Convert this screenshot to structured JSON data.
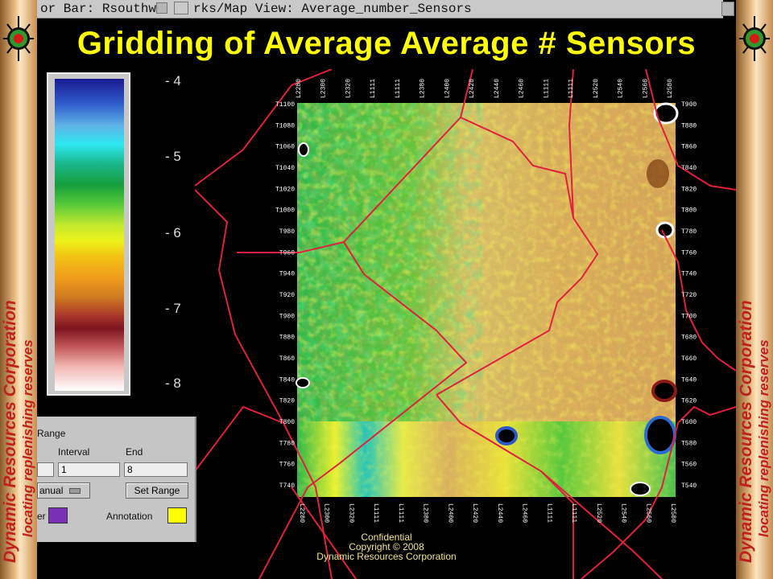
{
  "window": {
    "colorbar_title": "or Bar: Rsouthw",
    "map_title": "rks/Map View: Average_number_Sensors"
  },
  "slide": {
    "title": "Gridding of Average Average # Sensors"
  },
  "branding": {
    "left_line1": "Dynamic Resources Corporation",
    "left_line2": "locating replenishing reserves",
    "right_line1": "Dynamic Resources Corporation",
    "right_line2": "locating replenishing reserves"
  },
  "colorbar": {
    "ticks": [
      "- 4",
      "- 5",
      "- 6",
      "- 7",
      "- 8"
    ]
  },
  "range_panel": {
    "section_label": "Range",
    "interval_label": "Interval",
    "end_label": "End",
    "interval_value": "1",
    "end_value": "8",
    "mode_value": "anual",
    "set_range_label": "Set Range",
    "border_label": "er",
    "annotation_label": "Annotation",
    "border_color": "#7a2fb8",
    "annotation_color": "#ffff00"
  },
  "map": {
    "top_labels": [
      "L2280",
      "L2300",
      "L2320",
      "L1111",
      "L1111",
      "L2380",
      "L2400",
      "L2420",
      "L2440",
      "L2460",
      "L1111",
      "L1111",
      "L2520",
      "L2540",
      "L2560",
      "L2580"
    ],
    "bottom_labels": [
      "L2280",
      "L2300",
      "L2320",
      "L1111",
      "L1111",
      "L2380",
      "L2400",
      "L2420",
      "L2440",
      "L2460",
      "L1111",
      "L1111",
      "L2520",
      "L2540",
      "L2560",
      "L2580"
    ],
    "left_labels": [
      "T1100",
      "T1080",
      "T1060",
      "T1040",
      "T1020",
      "T1000",
      "T980",
      "T960",
      "T940",
      "T920",
      "T900",
      "T880",
      "T860",
      "T840",
      "T820",
      "T800",
      "T780",
      "T760",
      "T740"
    ],
    "right_labels": [
      "T900",
      "T880",
      "T860",
      "T840",
      "T820",
      "T800",
      "T780",
      "T760",
      "T740",
      "T720",
      "T700",
      "T680",
      "T660",
      "T640",
      "T620",
      "T600",
      "T580",
      "T560",
      "T540"
    ]
  },
  "footer": {
    "line1": "Confidential",
    "line2": "Copyright © 2008",
    "line3": "Dynamic Resources Corporation"
  },
  "colors": {
    "title_yellow": "#ffff00",
    "boundary_red": "#e0203c",
    "background": "#000000"
  }
}
